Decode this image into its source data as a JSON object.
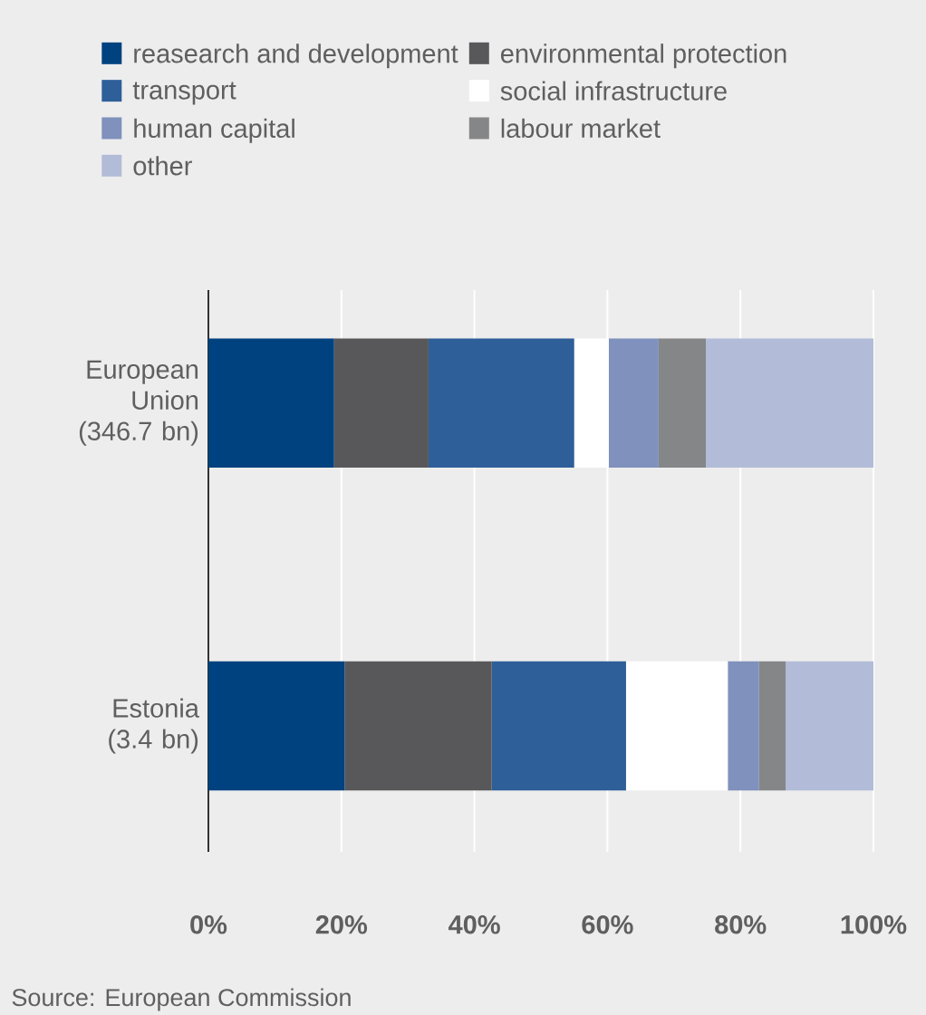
{
  "chart_data": {
    "type": "bar",
    "orientation": "horizontal",
    "stacked": true,
    "categories": [
      "European Union (346.7 bn)",
      "Estonia (3.4 bn)"
    ],
    "series": [
      {
        "name": "reasearch and development",
        "color": "#00427f",
        "values": [
          18.9,
          20.5
        ]
      },
      {
        "name": "environmental protection",
        "color": "#58585a",
        "values": [
          14.2,
          22.1
        ]
      },
      {
        "name": "transport",
        "color": "#2e5f98",
        "values": [
          21.9,
          20.2
        ]
      },
      {
        "name": "social infrastructure",
        "color": "#ffffff",
        "values": [
          5.2,
          15.3
        ]
      },
      {
        "name": "human capital",
        "color": "#7f91bc",
        "values": [
          7.5,
          4.7
        ]
      },
      {
        "name": "labour market",
        "color": "#858688",
        "values": [
          7.1,
          4.0
        ]
      },
      {
        "name": "other",
        "color": "#b2bcd8",
        "values": [
          25.2,
          13.2
        ]
      }
    ],
    "xlim": [
      0,
      100
    ],
    "xticks": [
      {
        "value": 0,
        "label": "0%"
      },
      {
        "value": 20,
        "label": "20%"
      },
      {
        "value": 40,
        "label": "40%"
      },
      {
        "value": 60,
        "label": "60%"
      },
      {
        "value": 80,
        "label": "80%"
      },
      {
        "value": 100,
        "label": "100%"
      }
    ],
    "grid": "x",
    "legend": "top",
    "annotations": [
      "Source: European Commission"
    ]
  }
}
